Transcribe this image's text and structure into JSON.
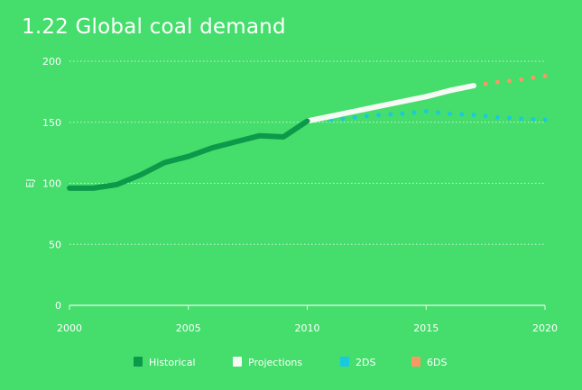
{
  "colors": {
    "background": "#45dd6c",
    "historical": "#0c9a4a",
    "projections": "#f6faf4",
    "2ds": "#19c9e0",
    "6ds": "#f79a62",
    "grid": "#e8fbe8",
    "text": "#ffffff"
  },
  "chart_data": {
    "type": "line",
    "title": "1.22 Global coal demand",
    "xlabel": "",
    "ylabel": "EJ",
    "xlim": [
      2000,
      2020
    ],
    "ylim": [
      0,
      200
    ],
    "x_ticks": [
      2000,
      2005,
      2010,
      2015,
      2020
    ],
    "y_ticks": [
      0,
      50,
      100,
      150,
      200
    ],
    "grid": "horizontal dotted",
    "legend_position": "bottom",
    "series": [
      {
        "name": "Historical",
        "key": "historical",
        "style": "solid",
        "x": [
          2000,
          2001,
          2002,
          2003,
          2004,
          2005,
          2006,
          2007,
          2008,
          2009,
          2010
        ],
        "y": [
          96,
          96,
          99,
          107,
          117,
          122,
          129,
          134,
          139,
          138,
          151
        ]
      },
      {
        "name": "Projections",
        "key": "projections",
        "style": "solid",
        "x": [
          2010,
          2011,
          2012,
          2013,
          2014,
          2015,
          2016,
          2017
        ],
        "y": [
          151,
          155,
          159,
          163,
          167,
          171,
          176,
          180
        ]
      },
      {
        "name": "2DS",
        "key": "2ds",
        "style": "dotted",
        "x": [
          2010,
          2011,
          2012,
          2013,
          2014,
          2015,
          2016,
          2017,
          2018,
          2019,
          2020
        ],
        "y": [
          151,
          152,
          154,
          156,
          157,
          159,
          157,
          156,
          154,
          153,
          152
        ]
      },
      {
        "name": "6DS",
        "key": "6ds",
        "style": "dotted",
        "x": [
          2010,
          2011,
          2012,
          2013,
          2014,
          2015,
          2016,
          2017,
          2018,
          2019,
          2020
        ],
        "y": [
          151,
          155,
          159,
          163,
          167,
          171,
          176,
          180,
          183,
          185,
          188
        ]
      }
    ]
  }
}
